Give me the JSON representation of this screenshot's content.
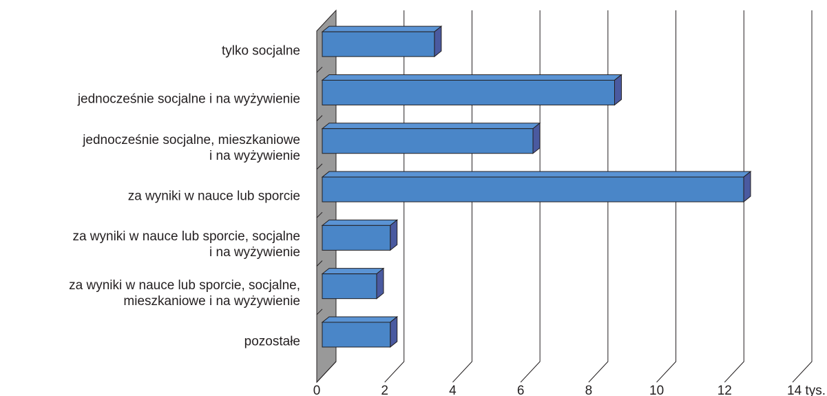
{
  "chart_data": {
    "type": "bar3d",
    "orientation": "horizontal",
    "categories": [
      "tylko socjalne",
      "jednocześnie socjalne i na wyżywienie",
      "jednocześnie socjalne, mieszkaniowe\ni na wyżywienie",
      "za wyniki w nauce lub sporcie",
      "za wyniki w nauce lub sporcie, socjalne\ni na wyżywienie",
      "za wyniki w nauce lub sporcie, socjalne,\nmieszkaniowe i na wyżywienie",
      "pozostałe"
    ],
    "values": [
      3.3,
      8.6,
      6.2,
      12.4,
      2.0,
      1.6,
      2.0
    ],
    "color": "#4a86c8",
    "xlim": [
      0,
      14
    ],
    "xticks": [
      0,
      2,
      4,
      6,
      8,
      10,
      12,
      {
        "value": 14,
        "label": "14 tys."
      }
    ],
    "grid": true
  }
}
